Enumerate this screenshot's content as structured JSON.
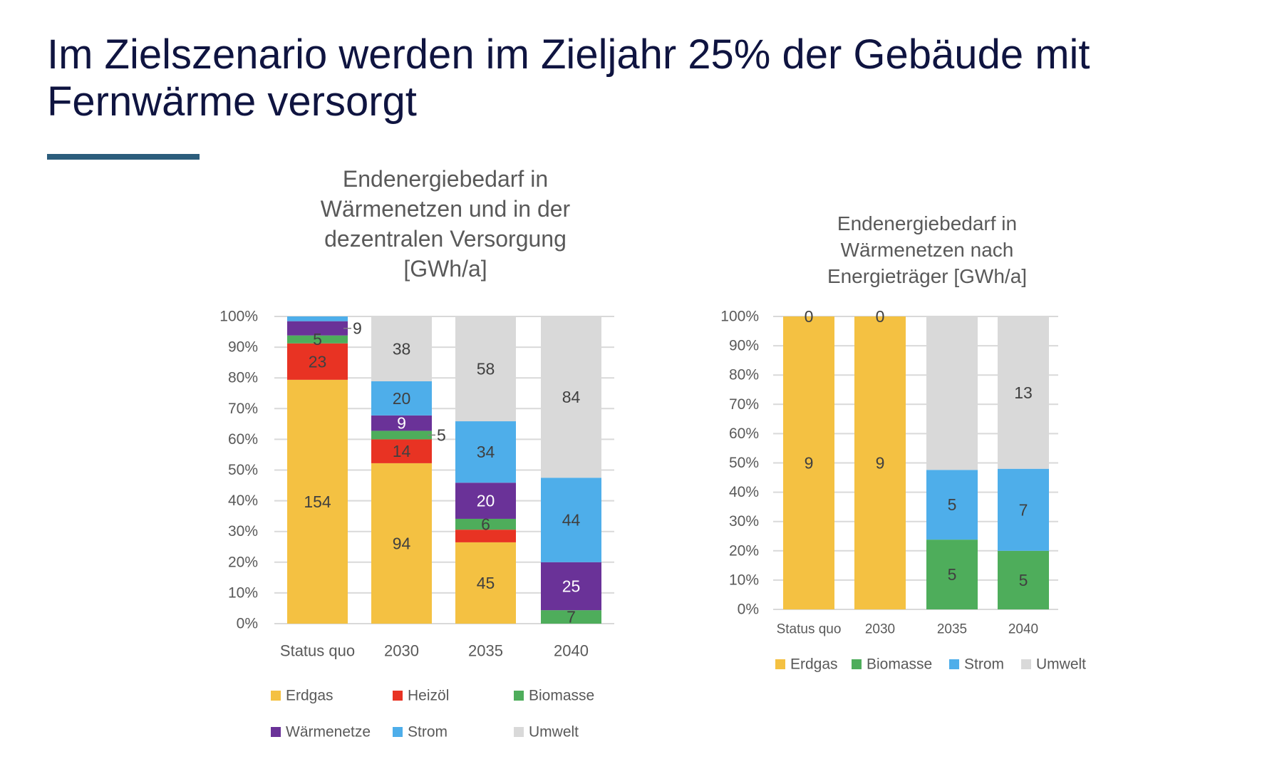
{
  "slide": {
    "title": "Im Zielszenario werden im Zieljahr 25% der Gebäude mit Fernwärme versorgt"
  },
  "chart_data": [
    {
      "type": "bar",
      "stacked": "percent",
      "title": [
        "Endenergiebedarf in",
        "Wärmenetzen und in der",
        "dezentralen Versorgung",
        "[GWh/a]"
      ],
      "categories": [
        "Status quo",
        "2030",
        "2035",
        "2040"
      ],
      "ylim": [
        0,
        100
      ],
      "yticks": [
        "0%",
        "10%",
        "20%",
        "30%",
        "40%",
        "50%",
        "60%",
        "70%",
        "80%",
        "90%",
        "100%"
      ],
      "grid": true,
      "legend_position": "bottom",
      "series": [
        {
          "name": "Erdgas",
          "color": "#F4C142",
          "label_color": "#404040",
          "values": [
            154,
            94,
            45,
            0
          ],
          "labels": [
            "154",
            "94",
            "45",
            ""
          ]
        },
        {
          "name": "Heizöl",
          "color": "#E83323",
          "label_color": "#404040",
          "values": [
            23,
            14,
            7,
            0
          ],
          "labels": [
            "23",
            "14",
            "",
            ""
          ]
        },
        {
          "name": "Biomasse",
          "color": "#4EAD5B",
          "label_color": "#404040",
          "values": [
            5,
            5,
            6,
            7
          ],
          "labels": [
            "5",
            "5",
            "6",
            "7"
          ]
        },
        {
          "name": "Wärmenetze",
          "color": "#6A3298",
          "label_color": "#FFFFFF",
          "values": [
            9,
            9,
            20,
            25
          ],
          "labels": [
            "9",
            "9",
            "20",
            "25"
          ]
        },
        {
          "name": "Strom",
          "color": "#4EAEEA",
          "label_color": "#404040",
          "values": [
            3,
            20,
            34,
            44
          ],
          "labels": [
            "",
            "20",
            "34",
            "44"
          ]
        },
        {
          "name": "Umwelt",
          "color": "#D9D9D9",
          "label_color": "#404040",
          "values": [
            0,
            38,
            58,
            84
          ],
          "labels": [
            "",
            "38",
            "58",
            "84"
          ]
        }
      ]
    },
    {
      "type": "bar",
      "stacked": "percent",
      "title": [
        "Endenergiebedarf in",
        "Wärmenetzen nach",
        "Energieträger [GWh/a]"
      ],
      "categories": [
        "Status quo",
        "2030",
        "2035",
        "2040"
      ],
      "ylim": [
        0,
        100
      ],
      "yticks": [
        "0%",
        "10%",
        "20%",
        "30%",
        "40%",
        "50%",
        "60%",
        "70%",
        "80%",
        "90%",
        "100%"
      ],
      "grid": true,
      "legend_position": "bottom",
      "series": [
        {
          "name": "Erdgas",
          "color": "#F4C142",
          "label_color": "#404040",
          "values": [
            9,
            9,
            0,
            0
          ],
          "labels": [
            "9",
            "9",
            "",
            ""
          ]
        },
        {
          "name": "Biomasse",
          "color": "#4EAD5B",
          "label_color": "#404040",
          "values": [
            0,
            0,
            5,
            5
          ],
          "labels": [
            "",
            "",
            "5",
            "5"
          ]
        },
        {
          "name": "Strom",
          "color": "#4EAEEA",
          "label_color": "#404040",
          "values": [
            0,
            0,
            5,
            7
          ],
          "labels": [
            "",
            "",
            "5",
            "7"
          ]
        },
        {
          "name": "Umwelt",
          "color": "#D9D9D9",
          "label_color": "#404040",
          "values": [
            0,
            0,
            11,
            13
          ],
          "labels": [
            "0",
            "0",
            "",
            "13"
          ]
        }
      ]
    }
  ]
}
